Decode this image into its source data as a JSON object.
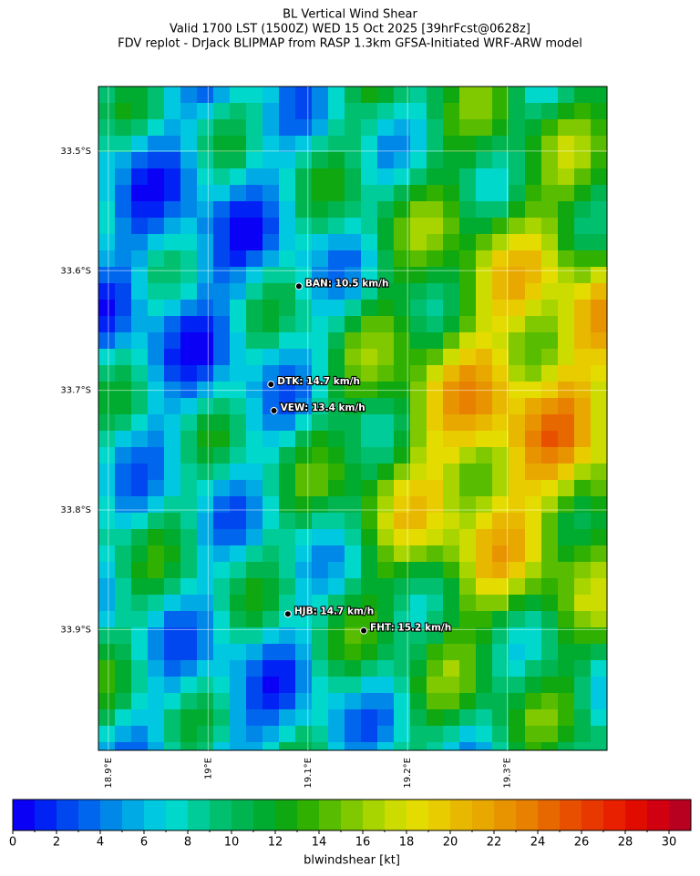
{
  "map": {
    "title": [
      "BL Vertical Wind Shear",
      "Valid 1700 LST (1500Z) WED 15 Oct 2025 [39hrFcst@0628z]",
      "FDV replot - DrJack BLIPMAP from RASP 1.3km GFSA-Initiated WRF-ARW model"
    ],
    "xlim": [
      18.89,
      19.4
    ],
    "ylim": [
      33.446,
      34.001
    ],
    "xticks": [
      {
        "value": 18.9,
        "label": "18.9°E"
      },
      {
        "value": 19.0,
        "label": "19°E"
      },
      {
        "value": 19.1,
        "label": "19.1°E"
      },
      {
        "value": 19.2,
        "label": "19.2°E"
      },
      {
        "value": 19.3,
        "label": "19.3°E"
      }
    ],
    "yticks": [
      {
        "value": 33.5,
        "label": "33.5°S"
      },
      {
        "value": 33.6,
        "label": "33.6°S"
      },
      {
        "value": 33.7,
        "label": "33.7°S"
      },
      {
        "value": 33.8,
        "label": "33.8°S"
      },
      {
        "value": 33.9,
        "label": "33.9°S"
      }
    ],
    "stations": [
      {
        "label": "BAN: 10.5 km/h",
        "lon": 19.091,
        "lat": 33.613
      },
      {
        "label": "DTK: 14.7 km/h",
        "lon": 19.063,
        "lat": 33.695
      },
      {
        "label": "VEW: 13.4 km/h",
        "lon": 19.066,
        "lat": 33.717
      },
      {
        "label": "HJB: 14.7 km/h",
        "lon": 19.08,
        "lat": 33.887
      },
      {
        "label": "FHT: 15.2 km/h",
        "lon": 19.156,
        "lat": 33.901
      }
    ],
    "colorbar": {
      "label": "blwindshear [kt]",
      "lim": [
        0,
        31
      ],
      "ticks": [
        0,
        2,
        4,
        6,
        8,
        10,
        12,
        14,
        16,
        18,
        20,
        22,
        24,
        26,
        28,
        30
      ],
      "colors": [
        "#0a00f5",
        "#0022f5",
        "#0047f0",
        "#0066ee",
        "#0088e8",
        "#00aae4",
        "#00c8e0",
        "#00d8cc",
        "#00cc99",
        "#00c070",
        "#00b450",
        "#00ac30",
        "#10a810",
        "#30b000",
        "#58bc00",
        "#80c800",
        "#a8d400",
        "#ccdc00",
        "#e4dc00",
        "#e8cc00",
        "#e8b800",
        "#e8a800",
        "#e89400",
        "#e88000",
        "#e86800",
        "#e85000",
        "#e83800",
        "#e82000",
        "#e00c00",
        "#d00010",
        "#b80020"
      ]
    }
  }
}
